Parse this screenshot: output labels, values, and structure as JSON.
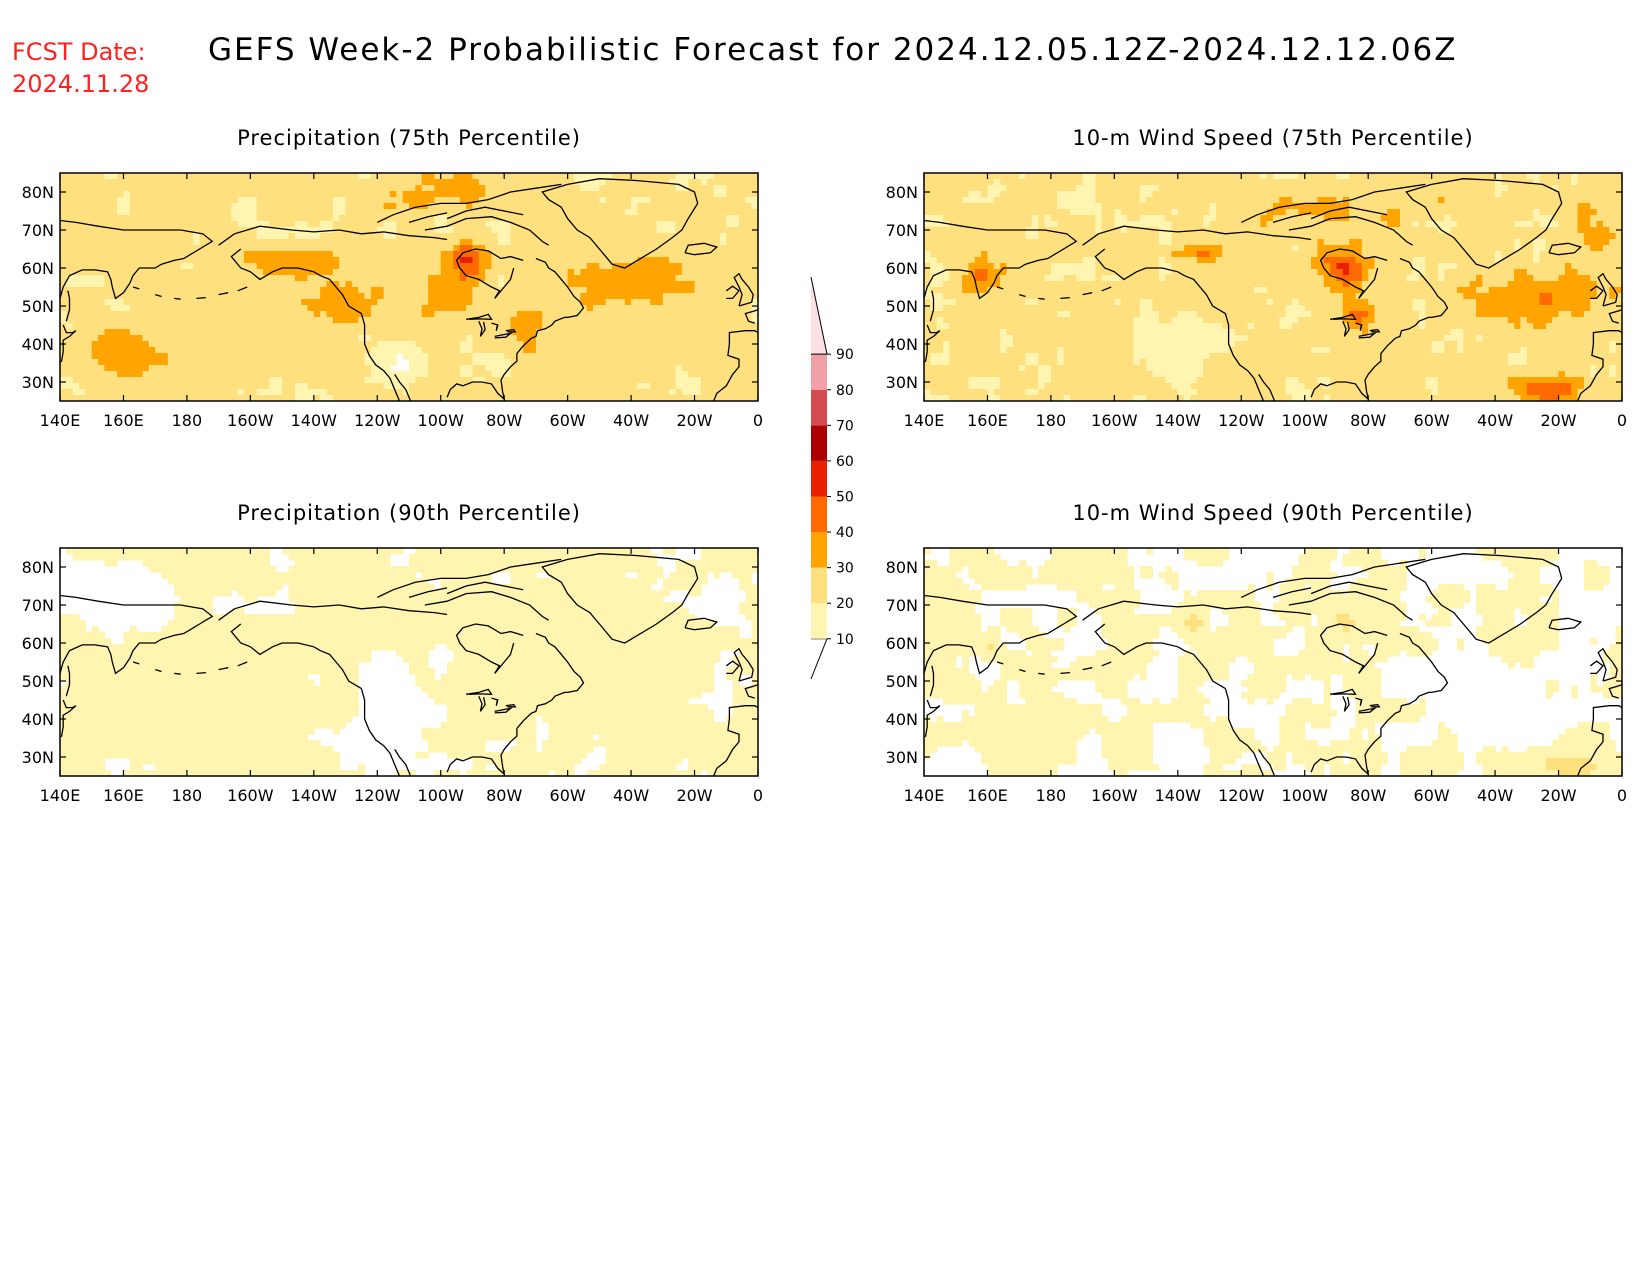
{
  "header": {
    "fcst_label": "FCST Date:",
    "fcst_date": "2024.11.28",
    "title": "GEFS Week-2 Probabilistic Forecast for 2024.12.05.12Z-2024.12.12.06Z",
    "fcst_color": "#ff2020"
  },
  "axes": {
    "lat_labels": [
      "80N",
      "70N",
      "60N",
      "50N",
      "40N",
      "30N"
    ],
    "lon_labels": [
      "140E",
      "160E",
      "180",
      "160W",
      "140W",
      "120W",
      "100W",
      "80W",
      "60W",
      "40W",
      "20W",
      "0"
    ]
  },
  "panels": [
    {
      "title": "Precipitation (75th Percentile)",
      "field": "precip75"
    },
    {
      "title": "10-m Wind Speed (75th Percentile)",
      "field": "wind75"
    },
    {
      "title": "Precipitation (90th Percentile)",
      "field": "precip90"
    },
    {
      "title": "10-m Wind Speed (90th Percentile)",
      "field": "wind90"
    }
  ],
  "colorbar": {
    "ticks": [
      "10",
      "20",
      "30",
      "40",
      "50",
      "60",
      "70",
      "80",
      "90"
    ],
    "colors": [
      "#fff5b0",
      "#ffe07f",
      "#ffa400",
      "#ff6a00",
      "#e82000",
      "#aa0000",
      "#d44c50",
      "#f0a0a6",
      "#fde0e4"
    ]
  }
}
